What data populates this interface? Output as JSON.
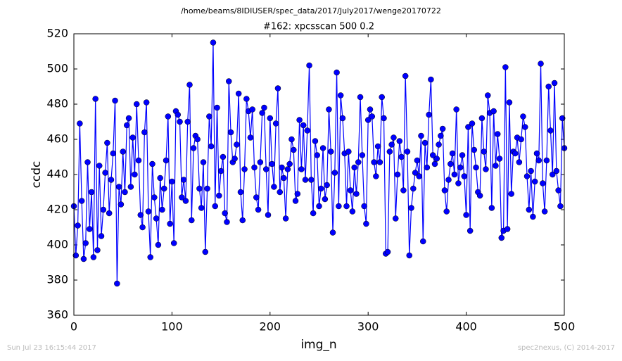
{
  "chart_data": {
    "type": "line",
    "title": "/home/beams/8IDIUSER/spec_data/2017/July2017/wenge20170722",
    "subtitle": "#162: xpcsscan 500 0.2",
    "x_label": "img_n",
    "y_label": "ccdc",
    "footer_left": "Sun Jul 23 16:15:44 2017",
    "footer_right": "spec2nexus, (C) 2014-2017",
    "xlim": [
      0,
      500
    ],
    "ylim": [
      360,
      520
    ],
    "xticks": [
      0,
      100,
      200,
      300,
      400,
      500
    ],
    "yticks": [
      360,
      380,
      400,
      420,
      440,
      460,
      480,
      500,
      520
    ],
    "grid": false,
    "x": [
      0,
      2,
      4,
      6,
      8,
      10,
      12,
      14,
      16,
      18,
      20,
      22,
      24,
      26,
      28,
      30,
      32,
      34,
      36,
      38,
      40,
      42,
      44,
      46,
      48,
      50,
      52,
      54,
      56,
      58,
      60,
      62,
      64,
      66,
      68,
      70,
      72,
      74,
      76,
      78,
      80,
      82,
      84,
      86,
      88,
      90,
      92,
      94,
      96,
      98,
      100,
      102,
      104,
      106,
      108,
      110,
      112,
      114,
      116,
      118,
      120,
      122,
      124,
      126,
      128,
      130,
      132,
      134,
      136,
      138,
      140,
      142,
      144,
      146,
      148,
      150,
      152,
      154,
      156,
      158,
      160,
      162,
      164,
      166,
      168,
      170,
      172,
      174,
      176,
      178,
      180,
      182,
      184,
      186,
      188,
      190,
      192,
      194,
      196,
      198,
      200,
      202,
      204,
      206,
      208,
      210,
      212,
      214,
      216,
      218,
      220,
      222,
      224,
      226,
      228,
      230,
      232,
      234,
      236,
      238,
      240,
      242,
      244,
      246,
      248,
      250,
      252,
      254,
      256,
      258,
      260,
      262,
      264,
      266,
      268,
      270,
      272,
      274,
      276,
      278,
      280,
      282,
      284,
      286,
      288,
      290,
      292,
      294,
      296,
      298,
      300,
      302,
      304,
      306,
      308,
      310,
      312,
      314,
      316,
      318,
      320,
      322,
      324,
      326,
      328,
      330,
      332,
      334,
      336,
      338,
      340,
      342,
      344,
      346,
      348,
      350,
      352,
      354,
      356,
      358,
      360,
      362,
      364,
      366,
      368,
      370,
      372,
      374,
      376,
      378,
      380,
      382,
      384,
      386,
      388,
      390,
      392,
      394,
      396,
      398,
      400,
      402,
      404,
      406,
      408,
      410,
      412,
      414,
      416,
      418,
      420,
      422,
      424,
      426,
      428,
      430,
      432,
      434,
      436,
      438,
      440,
      442,
      444,
      446,
      448,
      450,
      452,
      454,
      456,
      458,
      460,
      462,
      464,
      466,
      468,
      470,
      472,
      474,
      476,
      478,
      480,
      482,
      484,
      486,
      488,
      490,
      492,
      494,
      496,
      498,
      500
    ],
    "series": [
      {
        "name": "ccdc",
        "color": "#0000ff",
        "values": [
          422,
          394,
          411,
          469,
          425,
          392,
          401,
          447,
          409,
          430,
          393,
          483,
          397,
          445,
          405,
          420,
          441,
          458,
          418,
          437,
          452,
          482,
          378,
          433,
          423,
          453,
          430,
          468,
          472,
          433,
          461,
          440,
          480,
          448,
          417,
          410,
          464,
          481,
          419,
          393,
          446,
          427,
          415,
          400,
          438,
          420,
          432,
          448,
          473,
          412,
          436,
          401,
          476,
          474,
          470,
          427,
          437,
          425,
          470,
          491,
          414,
          455,
          462,
          460,
          432,
          421,
          447,
          396,
          432,
          473,
          456,
          515,
          422,
          478,
          428,
          442,
          450,
          418,
          413,
          493,
          464,
          447,
          449,
          457,
          486,
          430,
          414,
          443,
          483,
          476,
          461,
          477,
          444,
          427,
          420,
          447,
          475,
          478,
          443,
          417,
          472,
          446,
          433,
          469,
          489,
          430,
          444,
          438,
          415,
          443,
          446,
          460,
          454,
          425,
          429,
          471,
          443,
          468,
          437,
          465,
          502,
          437,
          418,
          459,
          451,
          422,
          432,
          455,
          426,
          434,
          477,
          453,
          407,
          441,
          498,
          422,
          485,
          472,
          452,
          422,
          453,
          431,
          419,
          444,
          429,
          447,
          484,
          451,
          422,
          412,
          471,
          477,
          473,
          447,
          439,
          456,
          447,
          484,
          472,
          395,
          396,
          453,
          457,
          461,
          415,
          440,
          459,
          450,
          431,
          496,
          453,
          394,
          421,
          432,
          441,
          448,
          439,
          462,
          402,
          458,
          444,
          474,
          494,
          451,
          446,
          449,
          457,
          462,
          466,
          431,
          419,
          437,
          446,
          452,
          440,
          477,
          435,
          444,
          451,
          439,
          417,
          467,
          408,
          469,
          454,
          444,
          430,
          428,
          472,
          453,
          443,
          485,
          475,
          421,
          476,
          445,
          463,
          449,
          404,
          408,
          501,
          409,
          481,
          429,
          453,
          452,
          461,
          447,
          460,
          473,
          467,
          439,
          420,
          442,
          416,
          436,
          452,
          448,
          503,
          435,
          419,
          448,
          490,
          465,
          440,
          492,
          442,
          431,
          422,
          472,
          455
        ]
      }
    ]
  }
}
